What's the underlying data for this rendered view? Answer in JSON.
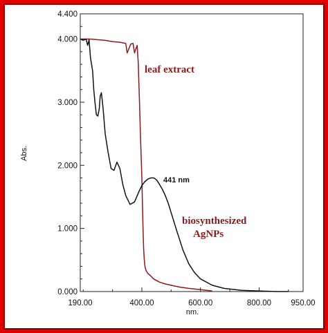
{
  "chart_data": {
    "type": "line",
    "xlabel": "nm.",
    "ylabel": "Abs.",
    "xlim": [
      190,
      950
    ],
    "ylim": [
      0,
      4.4
    ],
    "x_ticks": [
      "190.00",
      "400.00",
      "600.00",
      "800.00",
      "950.00"
    ],
    "x_tick_values": [
      190,
      400,
      600,
      800,
      950
    ],
    "x_minor_ticks": [
      200,
      300,
      500,
      700,
      900
    ],
    "y_ticks": [
      "0.000",
      "1.000",
      "2.000",
      "3.000",
      "4.000",
      "4.400"
    ],
    "y_tick_values": [
      0,
      1,
      2,
      3,
      4,
      4.4
    ],
    "series": [
      {
        "name": "leaf extract",
        "color": "#8b1a1a",
        "x": [
          190,
          205,
          225,
          250,
          275,
          300,
          325,
          345,
          350,
          362,
          370,
          375,
          380,
          384,
          388,
          390,
          392,
          395,
          398,
          400,
          402,
          404,
          406,
          408,
          410,
          413,
          416,
          420,
          425,
          432,
          440,
          460,
          480,
          500,
          530,
          560,
          600,
          640
        ],
        "y": [
          4.0,
          4.0,
          4.0,
          3.99,
          3.98,
          3.96,
          3.95,
          3.93,
          3.78,
          3.92,
          3.93,
          3.78,
          3.85,
          3.9,
          3.6,
          3.3,
          3.0,
          2.5,
          2.1,
          1.8,
          1.4,
          1.0,
          0.7,
          0.52,
          0.42,
          0.35,
          0.32,
          0.29,
          0.27,
          0.24,
          0.2,
          0.15,
          0.12,
          0.1,
          0.07,
          0.05,
          0.03,
          0.01
        ]
      },
      {
        "name": "biosynthesized AgNPs",
        "color": "#111111",
        "x": [
          190,
          200,
          210,
          215,
          220,
          225,
          232,
          236,
          240,
          245,
          250,
          255,
          258,
          262,
          268,
          275,
          285,
          295,
          305,
          315,
          325,
          335,
          345,
          360,
          375,
          390,
          400,
          410,
          420,
          430,
          441,
          450,
          460,
          470,
          480,
          490,
          500,
          520,
          540,
          560,
          580,
          600,
          640,
          680,
          740,
          800,
          860,
          900
        ],
        "y": [
          4.0,
          3.98,
          4.0,
          3.9,
          3.99,
          3.7,
          3.5,
          3.2,
          3.0,
          2.8,
          2.78,
          2.9,
          3.1,
          3.15,
          2.9,
          2.5,
          2.2,
          1.95,
          1.92,
          2.05,
          1.95,
          1.7,
          1.52,
          1.38,
          1.42,
          1.58,
          1.68,
          1.74,
          1.78,
          1.8,
          1.8,
          1.77,
          1.7,
          1.62,
          1.52,
          1.4,
          1.25,
          0.95,
          0.66,
          0.44,
          0.3,
          0.2,
          0.1,
          0.05,
          0.02,
          0.01,
          0.0,
          0.0
        ]
      }
    ],
    "annotations": [
      {
        "text": "leaf extract",
        "color": "#8b1a1a"
      },
      {
        "text": "441 nm",
        "color": "#111111"
      },
      {
        "text": "biosynthesized",
        "color": "#8b1a1a"
      },
      {
        "text": "AgNPs",
        "color": "#8b1a1a"
      }
    ],
    "grid": false,
    "legend": "none"
  }
}
